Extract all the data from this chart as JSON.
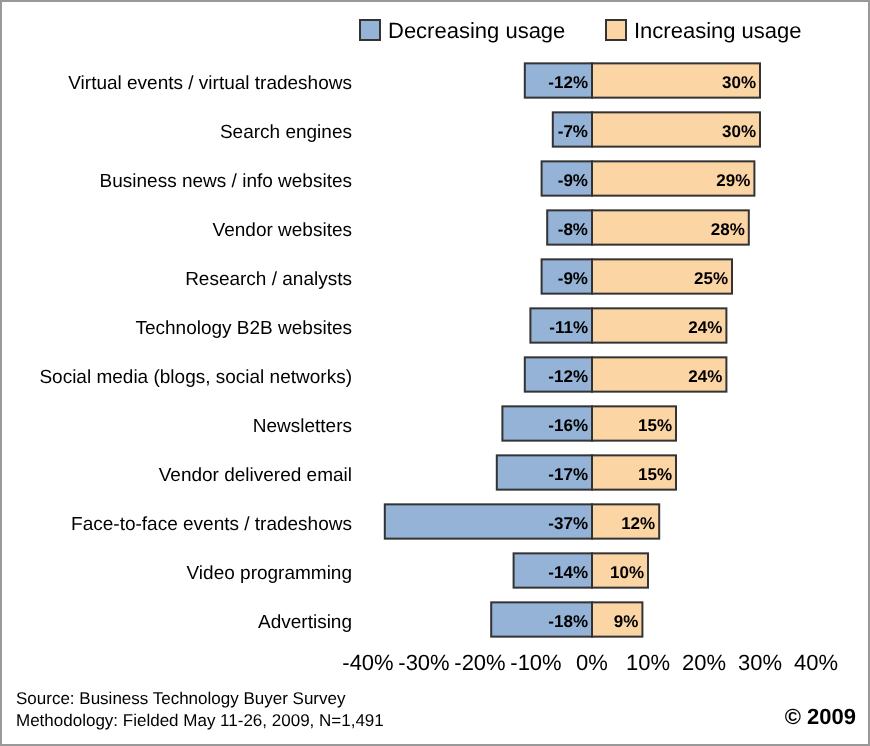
{
  "chart_data": {
    "type": "bar",
    "orientation": "horizontal",
    "stacked": true,
    "legend": "top",
    "grid": false,
    "categories": [
      "Virtual events / virtual tradeshows",
      "Search engines",
      "Business news / info websites",
      "Vendor websites",
      "Research / analysts",
      "Technology B2B websites",
      "Social media (blogs, social networks)",
      "Newsletters",
      "Vendor delivered email",
      "Face-to-face events / tradeshows",
      "Video programming",
      "Advertising"
    ],
    "series": [
      {
        "name": "Decreasing usage",
        "color": "#95b3d7",
        "values": [
          -12,
          -7,
          -9,
          -8,
          -9,
          -11,
          -12,
          -16,
          -17,
          -37,
          -14,
          -18
        ],
        "value_labels": [
          "-12%",
          "-7%",
          "-9%",
          "-8%",
          "-9%",
          "-11%",
          "-12%",
          "-16%",
          "-17%",
          "-37%",
          "-14%",
          "-18%"
        ]
      },
      {
        "name": "Increasing usage",
        "color": "#fcd5a5",
        "values": [
          30,
          30,
          29,
          28,
          25,
          24,
          24,
          15,
          15,
          12,
          10,
          9
        ],
        "value_labels": [
          "30%",
          "30%",
          "29%",
          "28%",
          "25%",
          "24%",
          "24%",
          "15%",
          "15%",
          "12%",
          "10%",
          "9%"
        ]
      }
    ],
    "xlim": [
      -40,
      40
    ],
    "xticks": [
      {
        "value": -40,
        "label": "-40%"
      },
      {
        "value": -30,
        "label": "-30%"
      },
      {
        "value": -20,
        "label": "-20%"
      },
      {
        "value": -10,
        "label": "-10%"
      },
      {
        "value": 0,
        "label": "0%"
      },
      {
        "value": 10,
        "label": "10%"
      },
      {
        "value": 20,
        "label": "20%"
      },
      {
        "value": 30,
        "label": "30%"
      },
      {
        "value": 40,
        "label": "40%"
      }
    ],
    "annotations": [
      "Source: Business Technology Buyer Survey",
      "Methodology: Fielded May 11-26, 2009, N=1,491",
      "© 2009"
    ]
  }
}
